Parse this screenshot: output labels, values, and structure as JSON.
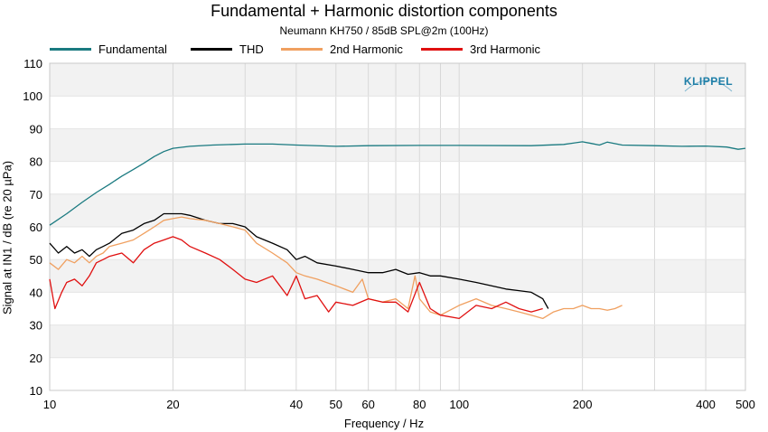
{
  "chart_data": {
    "type": "line",
    "title": "Fundamental + Harmonic distortion components",
    "subtitle": "Neumann KH750 / 85dB SPL@2m (100Hz)",
    "xlabel": "Frequency / Hz",
    "ylabel": "Signal at IN1 / dB (re 20 µPa)",
    "x_scale": "log",
    "xlim": [
      10,
      500
    ],
    "ylim": [
      10,
      110
    ],
    "x_ticks": [
      10,
      20,
      40,
      50,
      60,
      80,
      100,
      200,
      400,
      500
    ],
    "x_tick_labels": [
      "10",
      "20",
      "40",
      "50",
      "60",
      "80",
      "100",
      "200",
      "400",
      "500"
    ],
    "y_ticks": [
      10,
      20,
      30,
      40,
      50,
      60,
      70,
      80,
      90,
      100,
      110
    ],
    "y_tick_labels": [
      "10",
      "20",
      "30",
      "40",
      "50",
      "60",
      "70",
      "80",
      "90",
      "100",
      "110"
    ],
    "logo": "KLIPPEL",
    "series": [
      {
        "name": "Fundamental",
        "color": "#1a7a80",
        "x": [
          10,
          11,
          12,
          13,
          14,
          15,
          16,
          17,
          18,
          19,
          20,
          22,
          25,
          30,
          35,
          40,
          50,
          60,
          80,
          100,
          150,
          180,
          200,
          210,
          220,
          230,
          250,
          300,
          350,
          400,
          450,
          480,
          500
        ],
        "y": [
          60.5,
          64,
          67.5,
          70.5,
          73,
          75.5,
          77.5,
          79.5,
          81.5,
          83,
          84,
          84.6,
          85,
          85.3,
          85.3,
          85,
          84.6,
          84.8,
          84.9,
          84.9,
          84.8,
          85.2,
          86,
          85.5,
          85,
          85.9,
          85,
          84.8,
          84.6,
          84.7,
          84.4,
          83.7,
          84
        ]
      },
      {
        "name": "THD",
        "color": "#000000",
        "x": [
          10,
          10.5,
          11,
          11.5,
          12,
          12.5,
          13,
          13.5,
          14,
          15,
          16,
          17,
          18,
          19,
          20,
          21,
          22,
          24,
          26,
          28,
          30,
          32,
          35,
          38,
          40,
          42,
          45,
          50,
          55,
          60,
          65,
          70,
          75,
          80,
          85,
          90,
          100,
          110,
          120,
          130,
          140,
          150,
          160,
          165
        ],
        "y": [
          55,
          52,
          54,
          52,
          53,
          51,
          53,
          54,
          55,
          58,
          59,
          61,
          62,
          64,
          64,
          64,
          63.5,
          62,
          61,
          61,
          60,
          57,
          55,
          53,
          50,
          51,
          49,
          48,
          47,
          46,
          46,
          47,
          45.5,
          46,
          45,
          45,
          44,
          43,
          42,
          41,
          40.5,
          40,
          38,
          35
        ]
      },
      {
        "name": "2nd Harmonic",
        "color": "#f0a060",
        "x": [
          10,
          10.5,
          11,
          11.5,
          12,
          12.5,
          13,
          13.5,
          14,
          15,
          16,
          17,
          18,
          19,
          20,
          21,
          22,
          24,
          26,
          28,
          30,
          32,
          35,
          38,
          40,
          42,
          45,
          50,
          55,
          58,
          60,
          65,
          70,
          75,
          78,
          80,
          85,
          90,
          100,
          110,
          120,
          130,
          140,
          150,
          160,
          170,
          180,
          190,
          200,
          210,
          220,
          230,
          240,
          250
        ],
        "y": [
          49,
          47,
          50,
          49,
          51,
          49,
          51,
          52,
          54,
          55,
          56,
          58,
          60,
          62,
          62.5,
          63,
          62.5,
          62,
          61,
          60,
          59,
          55,
          52,
          49,
          46,
          45,
          44,
          42,
          40,
          44,
          38,
          37,
          38,
          35,
          45,
          38,
          34,
          33,
          36,
          38,
          36,
          35,
          34,
          33,
          32,
          34,
          35,
          35,
          36,
          35,
          35,
          34.5,
          35,
          36
        ]
      },
      {
        "name": "3rd Harmonic",
        "color": "#e01010",
        "x": [
          10,
          10.3,
          10.7,
          11,
          11.5,
          12,
          12.5,
          13,
          13.5,
          14,
          15,
          16,
          17,
          18,
          19,
          20,
          21,
          22,
          24,
          26,
          28,
          30,
          32,
          35,
          38,
          40,
          42,
          45,
          48,
          50,
          55,
          60,
          65,
          70,
          75,
          80,
          85,
          90,
          100,
          110,
          120,
          130,
          140,
          150,
          160
        ],
        "y": [
          44,
          35,
          40,
          43,
          44,
          42,
          45,
          49,
          50,
          51,
          52,
          49,
          53,
          55,
          56,
          57,
          56,
          54,
          52,
          50,
          47,
          44,
          43,
          45,
          39,
          45,
          38,
          39,
          34,
          37,
          36,
          38,
          37,
          37,
          34,
          43,
          35,
          33,
          32,
          36,
          35,
          37,
          35,
          34,
          35
        ]
      }
    ]
  }
}
